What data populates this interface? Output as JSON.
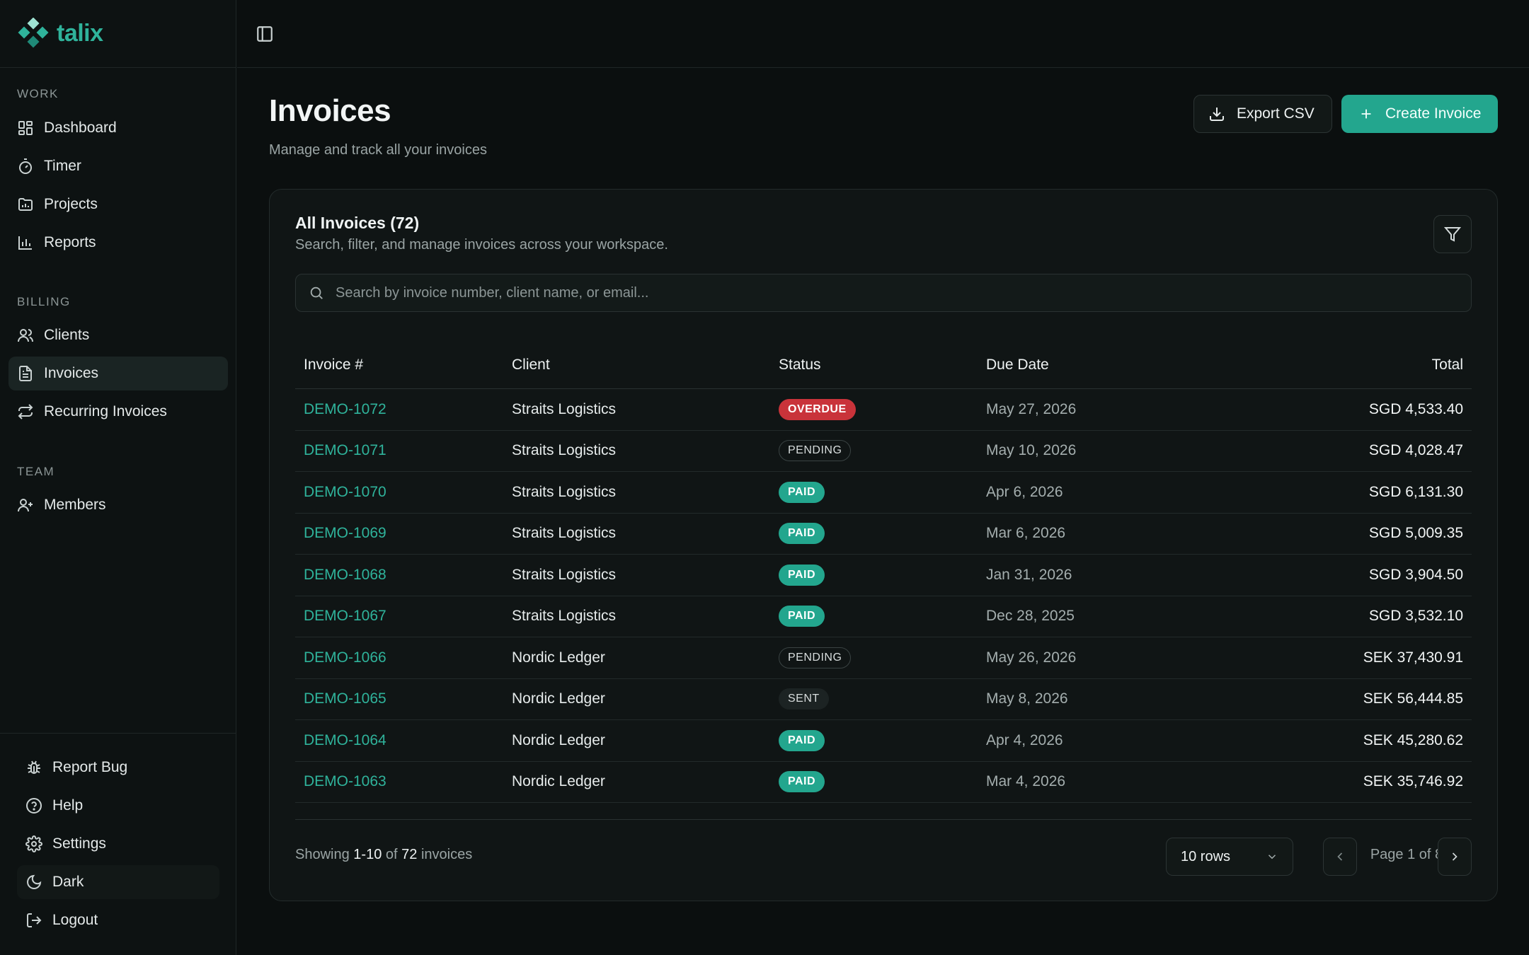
{
  "brand": {
    "name": "talix",
    "color": "#2fb39b"
  },
  "sidebar": {
    "sections": [
      {
        "label": "WORK",
        "items": [
          {
            "label": "Dashboard",
            "icon": "dashboard-icon"
          },
          {
            "label": "Timer",
            "icon": "timer-icon"
          },
          {
            "label": "Projects",
            "icon": "projects-icon"
          },
          {
            "label": "Reports",
            "icon": "reports-icon"
          }
        ]
      },
      {
        "label": "BILLING",
        "items": [
          {
            "label": "Clients",
            "icon": "clients-icon"
          },
          {
            "label": "Invoices",
            "icon": "invoice-icon",
            "active": true
          },
          {
            "label": "Recurring Invoices",
            "icon": "recurring-icon"
          }
        ]
      },
      {
        "label": "TEAM",
        "items": [
          {
            "label": "Members",
            "icon": "add-user-icon"
          }
        ]
      }
    ],
    "bottom": [
      {
        "label": "Report Bug",
        "icon": "bug-icon"
      },
      {
        "label": "Help",
        "icon": "help-icon"
      },
      {
        "label": "Settings",
        "icon": "gear-icon"
      },
      {
        "label": "Dark",
        "icon": "moon-icon"
      },
      {
        "label": "Logout",
        "icon": "logout-icon"
      }
    ]
  },
  "header": {
    "title": "Invoices",
    "subtitle": "Manage and track all your invoices",
    "export_label": "Export CSV",
    "create_label": "Create Invoice"
  },
  "card": {
    "title": "All Invoices (72)",
    "subtitle": "Search, filter, and manage invoices across your workspace.",
    "search_placeholder": "Search by invoice number, client name, or email..."
  },
  "table": {
    "columns": [
      "Invoice #",
      "Client",
      "Status",
      "Due Date",
      "Total"
    ],
    "rows": [
      {
        "invoice": "DEMO-1072",
        "client": "Straits Logistics",
        "status": "OVERDUE",
        "due": "May 27, 2026",
        "total": "SGD 4,533.40"
      },
      {
        "invoice": "DEMO-1071",
        "client": "Straits Logistics",
        "status": "PENDING",
        "due": "May 10, 2026",
        "total": "SGD 4,028.47"
      },
      {
        "invoice": "DEMO-1070",
        "client": "Straits Logistics",
        "status": "PAID",
        "due": "Apr 6, 2026",
        "total": "SGD 6,131.30"
      },
      {
        "invoice": "DEMO-1069",
        "client": "Straits Logistics",
        "status": "PAID",
        "due": "Mar 6, 2026",
        "total": "SGD 5,009.35"
      },
      {
        "invoice": "DEMO-1068",
        "client": "Straits Logistics",
        "status": "PAID",
        "due": "Jan 31, 2026",
        "total": "SGD 3,904.50"
      },
      {
        "invoice": "DEMO-1067",
        "client": "Straits Logistics",
        "status": "PAID",
        "due": "Dec 28, 2025",
        "total": "SGD 3,532.10"
      },
      {
        "invoice": "DEMO-1066",
        "client": "Nordic Ledger",
        "status": "PENDING",
        "due": "May 26, 2026",
        "total": "SEK 37,430.91"
      },
      {
        "invoice": "DEMO-1065",
        "client": "Nordic Ledger",
        "status": "SENT",
        "due": "May 8, 2026",
        "total": "SEK 56,444.85"
      },
      {
        "invoice": "DEMO-1064",
        "client": "Nordic Ledger",
        "status": "PAID",
        "due": "Apr 4, 2026",
        "total": "SEK 45,280.62"
      },
      {
        "invoice": "DEMO-1063",
        "client": "Nordic Ledger",
        "status": "PAID",
        "due": "Mar 4, 2026",
        "total": "SEK 35,746.92"
      }
    ]
  },
  "footer": {
    "showing_prefix": "Showing",
    "showing_range": "1-10",
    "showing_of": "of",
    "showing_total": "72",
    "showing_suffix": "invoices",
    "rows_select": "10 rows",
    "page_label": "Page 1 of 8"
  },
  "colors": {
    "accent": "#23a68e",
    "overdue": "#c9333a",
    "background": "#0b0f0f"
  }
}
